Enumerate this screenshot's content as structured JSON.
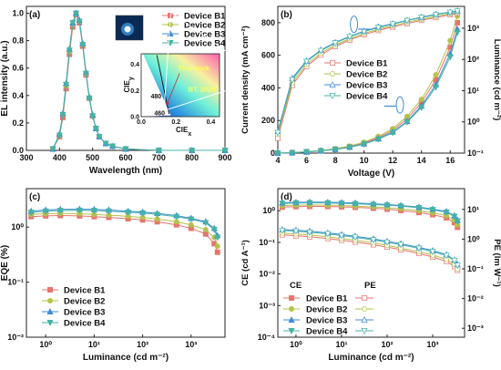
{
  "figure": {
    "background": "#ffffff"
  },
  "legend_labels": [
    "Device B1",
    "Device B2",
    "Device B3",
    "Device B4"
  ],
  "series_styles": [
    {
      "name": "Device B1",
      "color": "#e8726c",
      "marker": "square"
    },
    {
      "name": "Device B2",
      "color": "#b4c24a",
      "marker": "circle"
    },
    {
      "name": "Device B3",
      "color": "#3f8bd6",
      "marker": "triangle-up"
    },
    {
      "name": "Device B4",
      "color": "#45b3a5",
      "marker": "triangle-down"
    }
  ],
  "panels": {
    "a": {
      "label": "(a)"
    },
    "b": {
      "label": "(b)"
    },
    "c": {
      "label": "(c)"
    },
    "d": {
      "label": "(d)"
    }
  },
  "chart_data": [
    {
      "panel": "a",
      "type": "line",
      "xlabel": "Wavelength (nm)",
      "ylabel": "EL intensity (a.u.)",
      "xlim": [
        300,
        900
      ],
      "ylim": [
        0,
        1.05
      ],
      "xticks": [
        300,
        400,
        500,
        600,
        700,
        800,
        900
      ],
      "yticks": [
        0.0,
        0.2,
        0.4,
        0.6,
        0.8,
        1.0
      ],
      "ytick_labels": [
        "0.0",
        "0.2",
        "0.4",
        "0.6",
        "0.8",
        "1.0"
      ],
      "x": [
        380,
        400,
        410,
        420,
        430,
        440,
        450,
        460,
        470,
        480,
        490,
        500,
        510,
        520,
        540,
        560,
        600,
        700,
        800,
        900
      ],
      "series": [
        {
          "name": "Device B1",
          "values": [
            0.01,
            0.1,
            0.24,
            0.45,
            0.7,
            0.9,
            0.99,
            0.93,
            0.76,
            0.55,
            0.38,
            0.25,
            0.16,
            0.1,
            0.05,
            0.03,
            0.01,
            0.0,
            0.0,
            0.0
          ]
        },
        {
          "name": "Device B2",
          "values": [
            0.01,
            0.11,
            0.26,
            0.47,
            0.72,
            0.92,
            1.0,
            0.94,
            0.77,
            0.56,
            0.38,
            0.25,
            0.16,
            0.1,
            0.05,
            0.03,
            0.01,
            0.0,
            0.0,
            0.0
          ]
        },
        {
          "name": "Device B3",
          "values": [
            0.01,
            0.12,
            0.27,
            0.49,
            0.74,
            0.93,
            1.0,
            0.95,
            0.78,
            0.57,
            0.39,
            0.26,
            0.16,
            0.1,
            0.05,
            0.03,
            0.01,
            0.0,
            0.0,
            0.0
          ]
        },
        {
          "name": "Device B4",
          "values": [
            0.01,
            0.11,
            0.26,
            0.48,
            0.73,
            0.93,
            1.0,
            0.94,
            0.77,
            0.56,
            0.38,
            0.25,
            0.16,
            0.1,
            0.05,
            0.03,
            0.01,
            0.0,
            0.0,
            0.0
          ]
        }
      ],
      "legend": "top-right",
      "inset": {
        "type": "cie-diagram",
        "xlabel": "CIE",
        "xlabel_sub": "x",
        "ylabel": "CIE",
        "ylabel_sub": "y",
        "xticks": [
          0.0,
          0.2,
          0.4
        ],
        "xtick_labels": [
          "0.0",
          "0.2",
          "0.4"
        ],
        "yticks": [
          0.0,
          0.2,
          0.4
        ],
        "ytick_labels": [
          "0.0",
          "0.2",
          "0.4"
        ],
        "wavelength_labels": [
          "480",
          "460"
        ],
        "annotations": [
          "This work",
          "BT. 2020"
        ],
        "point": {
          "x": 0.15,
          "y": 0.1
        }
      }
    },
    {
      "panel": "b",
      "type": "line",
      "xlabel": "Voltage (V)",
      "ylabel": "Current density (mA cm⁻²)",
      "y2label": "Luminance (cd m⁻²)",
      "xlim": [
        4,
        17
      ],
      "ylim": [
        0,
        900
      ],
      "y2scale": "log",
      "y2lim": [
        0.1,
        5000
      ],
      "xticks": [
        4,
        6,
        8,
        10,
        12,
        14,
        16
      ],
      "yticks": [
        0,
        200,
        400,
        600,
        800
      ],
      "y2ticks": [
        "10⁻¹",
        "10⁰",
        "10¹",
        "10²",
        "10³"
      ],
      "x": [
        4,
        5,
        6,
        7,
        8,
        9,
        10,
        11,
        12,
        13,
        14,
        15,
        16,
        16.5
      ],
      "current_density": [
        {
          "name": "Device B1",
          "values": [
            0,
            3,
            8,
            15,
            25,
            40,
            62,
            95,
            140,
            210,
            310,
            450,
            650,
            800
          ]
        },
        {
          "name": "Device B2",
          "values": [
            0,
            3,
            9,
            16,
            27,
            43,
            67,
            102,
            150,
            225,
            330,
            480,
            690,
            840
          ]
        },
        {
          "name": "Device B3",
          "values": [
            0,
            2,
            7,
            14,
            23,
            37,
            57,
            88,
            130,
            195,
            290,
            420,
            610,
            760
          ]
        },
        {
          "name": "Device B4",
          "values": [
            0,
            2,
            7,
            13,
            22,
            35,
            55,
            85,
            125,
            190,
            280,
            405,
            590,
            740
          ]
        }
      ],
      "luminance": [
        {
          "name": "Device B1",
          "values": [
            0.3,
            15,
            60,
            140,
            260,
            420,
            620,
            850,
            1100,
            1400,
            1800,
            2200,
            2700,
            3000
          ]
        },
        {
          "name": "Device B2",
          "values": [
            0.4,
            18,
            70,
            160,
            290,
            460,
            680,
            930,
            1200,
            1550,
            1950,
            2400,
            2900,
            3200
          ]
        },
        {
          "name": "Device B3",
          "values": [
            0.5,
            25,
            90,
            200,
            350,
            550,
            800,
            1100,
            1400,
            1800,
            2250,
            2800,
            3300,
            3600
          ]
        },
        {
          "name": "Device B4",
          "values": [
            0.45,
            22,
            85,
            190,
            335,
            530,
            780,
            1050,
            1350,
            1750,
            2200,
            2700,
            3200,
            3500
          ]
        }
      ],
      "legend": "center-left"
    },
    {
      "panel": "c",
      "type": "line",
      "xlabel": "Luminance (cd m⁻²)",
      "ylabel": "EQE (%)",
      "xscale": "log",
      "yscale": "log",
      "xlim": [
        0.4,
        5000
      ],
      "ylim": [
        0.01,
        5
      ],
      "xticks": [
        "10⁰",
        "10¹",
        "10²",
        "10³"
      ],
      "yticks": [
        "10⁻²",
        "10⁻¹",
        "10⁰"
      ],
      "x": [
        0.5,
        1,
        2,
        5,
        10,
        20,
        50,
        100,
        200,
        500,
        1000,
        2000,
        3000,
        3500
      ],
      "series": [
        {
          "name": "Device B1",
          "values": [
            1.55,
            1.6,
            1.62,
            1.6,
            1.55,
            1.5,
            1.42,
            1.35,
            1.25,
            1.1,
            0.95,
            0.75,
            0.5,
            0.35
          ]
        },
        {
          "name": "Device B2",
          "values": [
            1.7,
            1.75,
            1.78,
            1.75,
            1.7,
            1.65,
            1.57,
            1.5,
            1.4,
            1.25,
            1.1,
            0.9,
            0.65,
            0.45
          ]
        },
        {
          "name": "Device B3",
          "values": [
            1.95,
            2.05,
            2.1,
            2.12,
            2.1,
            2.05,
            1.95,
            1.88,
            1.78,
            1.62,
            1.45,
            1.25,
            0.95,
            0.7
          ]
        },
        {
          "name": "Device B4",
          "values": [
            1.85,
            1.95,
            2.0,
            2.02,
            2.0,
            1.95,
            1.86,
            1.8,
            1.7,
            1.55,
            1.4,
            1.2,
            0.9,
            0.65
          ]
        }
      ],
      "legend": "bottom-left"
    },
    {
      "panel": "d",
      "type": "line",
      "xlabel": "Luminance (cd m⁻²)",
      "ylabel": "CE (cd A⁻¹)",
      "y2label": "PE (lm W⁻¹)",
      "xscale": "log",
      "yscale": "log",
      "xlim": [
        0.4,
        5000
      ],
      "ylim": [
        0.0001,
        5
      ],
      "y2lim": [
        0.0005,
        50
      ],
      "xticks": [
        "10⁰",
        "10¹",
        "10²",
        "10³"
      ],
      "yticks": [
        "10⁻⁴",
        "10⁻³",
        "10⁻²",
        "10⁻¹",
        "10⁰"
      ],
      "y2ticks": [
        "10⁻³",
        "10⁻²",
        "10⁻¹",
        "10⁰",
        "10¹"
      ],
      "legend_headers": [
        "CE",
        "PE"
      ],
      "x": [
        0.5,
        1,
        2,
        5,
        10,
        20,
        50,
        100,
        200,
        500,
        1000,
        2000,
        3000,
        3500
      ],
      "ce": [
        {
          "name": "Device B1",
          "values": [
            1.3,
            1.35,
            1.37,
            1.36,
            1.33,
            1.28,
            1.2,
            1.12,
            1.02,
            0.88,
            0.75,
            0.6,
            0.42,
            0.3
          ]
        },
        {
          "name": "Device B2",
          "values": [
            1.45,
            1.5,
            1.52,
            1.5,
            1.46,
            1.4,
            1.32,
            1.25,
            1.15,
            1.0,
            0.86,
            0.7,
            0.5,
            0.36
          ]
        },
        {
          "name": "Device B3",
          "values": [
            1.8,
            1.85,
            1.88,
            1.86,
            1.82,
            1.76,
            1.66,
            1.58,
            1.47,
            1.3,
            1.13,
            0.95,
            0.7,
            0.5
          ]
        },
        {
          "name": "Device B4",
          "values": [
            1.7,
            1.75,
            1.78,
            1.76,
            1.72,
            1.66,
            1.57,
            1.5,
            1.4,
            1.24,
            1.08,
            0.9,
            0.66,
            0.47
          ]
        }
      ],
      "pe": [
        {
          "name": "Device B1",
          "values": [
            1.4,
            1.3,
            1.2,
            1.05,
            0.92,
            0.8,
            0.65,
            0.54,
            0.44,
            0.33,
            0.25,
            0.18,
            0.12,
            0.09
          ]
        },
        {
          "name": "Device B2",
          "values": [
            1.6,
            1.5,
            1.38,
            1.2,
            1.05,
            0.92,
            0.75,
            0.62,
            0.5,
            0.38,
            0.29,
            0.21,
            0.14,
            0.1
          ]
        },
        {
          "name": "Device B3",
          "values": [
            2.1,
            2.0,
            1.85,
            1.62,
            1.42,
            1.25,
            1.02,
            0.85,
            0.7,
            0.53,
            0.41,
            0.3,
            0.2,
            0.14
          ]
        },
        {
          "name": "Device B4",
          "values": [
            1.95,
            1.85,
            1.7,
            1.5,
            1.32,
            1.15,
            0.94,
            0.78,
            0.65,
            0.49,
            0.38,
            0.28,
            0.19,
            0.13
          ]
        }
      ],
      "legend": "bottom-left"
    }
  ]
}
